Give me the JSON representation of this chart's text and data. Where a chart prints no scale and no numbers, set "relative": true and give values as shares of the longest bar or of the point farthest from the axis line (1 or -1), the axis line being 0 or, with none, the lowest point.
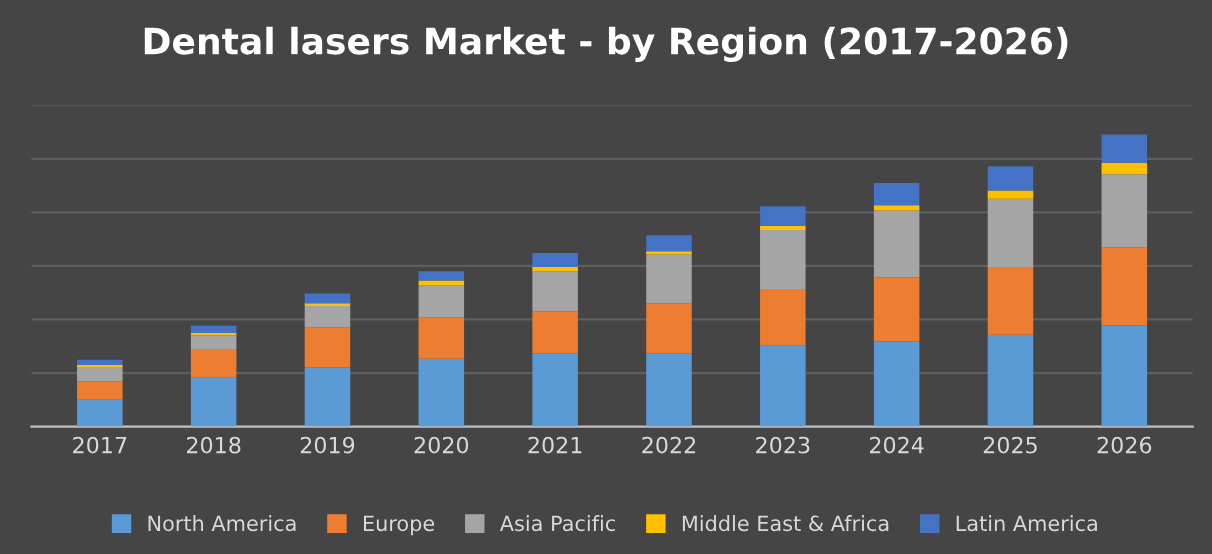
{
  "chart_data": {
    "type": "bar",
    "title": "Dental lasers Market - by Region (2017-2026)",
    "stacked": true,
    "relative": true,
    "grid": "y",
    "legend": "bottom",
    "categories": [
      "2017",
      "2018",
      "2019",
      "2020",
      "2021",
      "2022",
      "2023",
      "2024",
      "2025",
      "2026"
    ],
    "series": [
      {
        "name": "North America",
        "color": "#5b9bd5",
        "values": [
          0.092,
          0.167,
          0.202,
          0.232,
          0.25,
          0.25,
          0.278,
          0.291,
          0.314,
          0.346
        ]
      },
      {
        "name": "Europe",
        "color": "#ed7d31",
        "values": [
          0.062,
          0.096,
          0.138,
          0.142,
          0.144,
          0.172,
          0.193,
          0.22,
          0.232,
          0.268
        ]
      },
      {
        "name": "Asia Pacific",
        "color": "#a5a5a5",
        "values": [
          0.05,
          0.05,
          0.073,
          0.11,
          0.138,
          0.167,
          0.202,
          0.229,
          0.234,
          0.25
        ]
      },
      {
        "name": "Middle East & Africa",
        "color": "#ffc000",
        "values": [
          0.007,
          0.007,
          0.009,
          0.016,
          0.014,
          0.011,
          0.014,
          0.018,
          0.028,
          0.039
        ]
      },
      {
        "name": "Latin America",
        "color": "#4472c4",
        "values": [
          0.018,
          0.025,
          0.034,
          0.032,
          0.048,
          0.055,
          0.067,
          0.076,
          0.083,
          0.097
        ]
      }
    ]
  }
}
